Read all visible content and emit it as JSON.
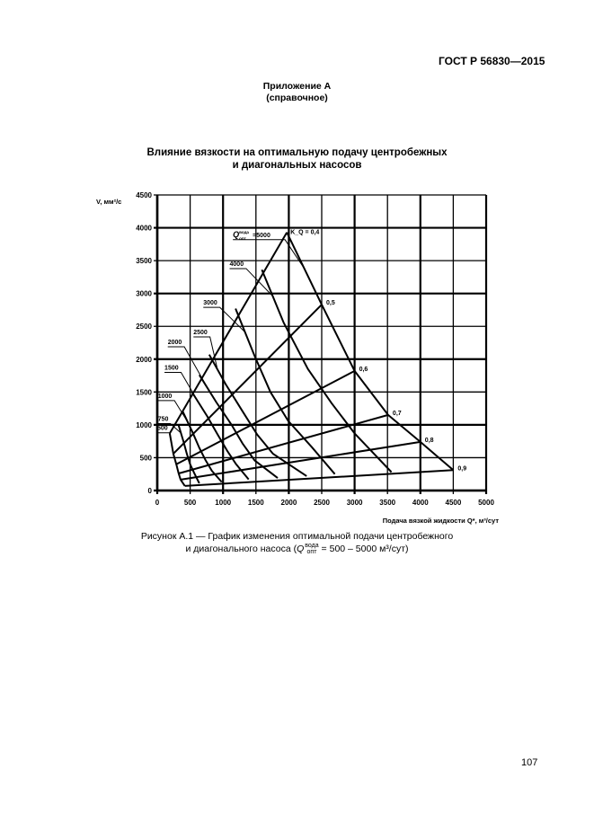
{
  "header": {
    "standard": "ГОСТ Р 56830—2015"
  },
  "appendix": {
    "title": "Приложение А",
    "subtitle": "(справочное)"
  },
  "figure_title": {
    "line1": "Влияние вязкости на оптимальную подачу центробежных",
    "line2": "и диагональных насосов"
  },
  "caption": {
    "line1": "Рисунок А.1 — График изменения оптимальной подачи центробежного",
    "line2_prefix": "и диагонального насоса (",
    "q_symbol": "Q",
    "q_sup": "вода",
    "q_sub": "опт",
    "line2_suffix": " = 500 – 5000 м³/сут)"
  },
  "page_number": "107",
  "chart_data": {
    "type": "line",
    "title": "Влияние вязкости на оптимальную подачу центробежных и диагональных насосов",
    "xlabel": "Подача вязкой жидкости Q*, м³/сут",
    "ylabel": "V, мм²/с",
    "xlim": [
      0,
      5000
    ],
    "ylim": [
      0,
      4500
    ],
    "xticks": [
      0,
      500,
      1000,
      1500,
      2000,
      2500,
      3000,
      3500,
      4000,
      4500,
      5000
    ],
    "yticks": [
      0,
      500,
      1000,
      1500,
      2000,
      2500,
      3000,
      3500,
      4000,
      4500
    ],
    "grid": true,
    "k_lines": [
      {
        "label": "K_Q = 0,4",
        "points": [
          [
            190,
            870
          ],
          [
            1970,
            3930
          ]
        ]
      },
      {
        "label": "0,5",
        "points": [
          [
            245,
            560
          ],
          [
            2500,
            2830
          ]
        ]
      },
      {
        "label": "0,6",
        "points": [
          [
            290,
            400
          ],
          [
            3000,
            1820
          ]
        ]
      },
      {
        "label": "0,7",
        "points": [
          [
            325,
            260
          ],
          [
            3510,
            1150
          ]
        ]
      },
      {
        "label": "0,8",
        "points": [
          [
            355,
            165
          ],
          [
            4000,
            740
          ]
        ]
      },
      {
        "label": "0,9",
        "points": [
          [
            420,
            70
          ],
          [
            4500,
            310
          ]
        ]
      }
    ],
    "q_curves": [
      {
        "label": "500",
        "points": [
          [
            190,
            870
          ],
          [
            245,
            560
          ],
          [
            290,
            400
          ],
          [
            325,
            260
          ],
          [
            355,
            165
          ],
          [
            420,
            70
          ]
        ]
      },
      {
        "label": "750",
        "points": [
          [
            320,
            1010
          ],
          [
            400,
            740
          ],
          [
            450,
            560
          ],
          [
            500,
            400
          ],
          [
            560,
            270
          ],
          [
            640,
            110
          ]
        ]
      },
      {
        "label": "1000",
        "points": [
          [
            390,
            1200
          ],
          [
            540,
            880
          ],
          [
            640,
            650
          ],
          [
            730,
            470
          ],
          [
            830,
            300
          ],
          [
            980,
            130
          ]
        ]
      },
      {
        "label": "1500",
        "points": [
          [
            520,
            1510
          ],
          [
            760,
            1130
          ],
          [
            920,
            850
          ],
          [
            1060,
            610
          ],
          [
            1200,
            400
          ],
          [
            1390,
            170
          ]
        ]
      },
      {
        "label": "2000",
        "points": [
          [
            640,
            1760
          ],
          [
            900,
            1340
          ],
          [
            1130,
            1000
          ],
          [
            1300,
            710
          ],
          [
            1480,
            460
          ],
          [
            1830,
            190
          ]
        ]
      },
      {
        "label": "2500",
        "points": [
          [
            790,
            2070
          ],
          [
            1040,
            1620
          ],
          [
            1300,
            1200
          ],
          [
            1520,
            850
          ],
          [
            1760,
            560
          ],
          [
            2270,
            220
          ]
        ]
      },
      {
        "label": "3000",
        "points": [
          [
            1190,
            2770
          ],
          [
            1480,
            2050
          ],
          [
            1720,
            1500
          ],
          [
            1990,
            1060
          ],
          [
            2350,
            660
          ],
          [
            2700,
            250
          ]
        ]
      },
      {
        "label": "4000",
        "points": [
          [
            1590,
            3360
          ],
          [
            1920,
            2560
          ],
          [
            2290,
            1850
          ],
          [
            2650,
            1330
          ],
          [
            3000,
            870
          ],
          [
            3560,
            280
          ]
        ]
      },
      {
        "label": "5000",
        "points": [
          [
            1970,
            3930
          ],
          [
            2500,
            2830
          ],
          [
            3000,
            1820
          ],
          [
            3510,
            1150
          ],
          [
            4000,
            740
          ],
          [
            4500,
            310
          ]
        ]
      }
    ],
    "annotations": [
      {
        "text": "Q_опт^вода=5000",
        "x": 1150,
        "y": 3860
      },
      {
        "text": "4000",
        "x": 1100,
        "y": 3420
      },
      {
        "text": "3000",
        "x": 700,
        "y": 2830
      },
      {
        "text": "2500",
        "x": 550,
        "y": 2380
      },
      {
        "text": "2000",
        "x": 160,
        "y": 2230
      },
      {
        "text": "1500",
        "x": 110,
        "y": 1840
      },
      {
        "text": "1000",
        "x": 10,
        "y": 1410
      },
      {
        "text": "750",
        "x": 10,
        "y": 1060
      },
      {
        "text": "500",
        "x": 0,
        "y": 920
      }
    ]
  }
}
